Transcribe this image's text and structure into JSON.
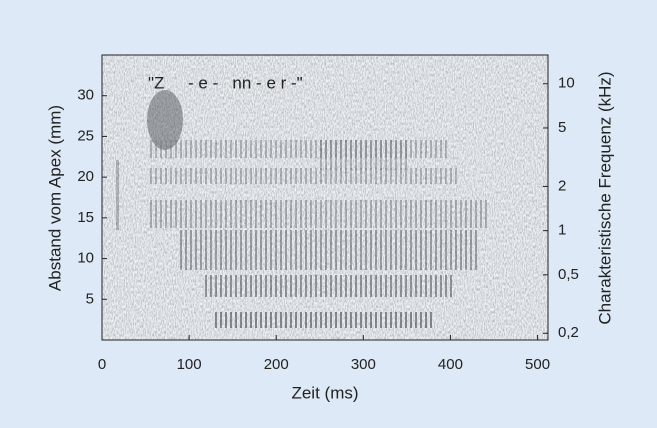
{
  "chart_data": {
    "type": "spectrogram",
    "xlabel": "Zeit (ms)",
    "ylabel": "Abstand vom Apex (mm)",
    "y2label": "Charakteristische Frequenz (kHz)",
    "annotation": "\"Z     - e -   nn - e r -\"",
    "xlim": [
      0,
      512
    ],
    "xticks": [
      0,
      100,
      200,
      300,
      400,
      500
    ],
    "ylim": [
      0,
      35
    ],
    "yticks": [
      5,
      10,
      15,
      20,
      25,
      30
    ],
    "y2lim": [
      0.18,
      15.7
    ],
    "y2scale": "log",
    "y2ticks": [
      {
        "value": 0.2,
        "label": "0,2"
      },
      {
        "value": 0.5,
        "label": "0,5"
      },
      1,
      2,
      5,
      10
    ]
  }
}
